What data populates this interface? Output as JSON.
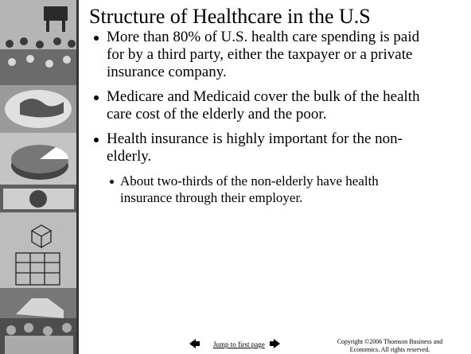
{
  "slide": {
    "title": "Structure of Healthcare in the U.S",
    "bullets": [
      {
        "level": 1,
        "text": "More than 80% of U.S. health care spending is paid for by a third party, either the taxpayer or a private insurance company."
      },
      {
        "level": 1,
        "text": "Medicare and Medicaid cover the bulk of the health care cost of the elderly and the poor."
      },
      {
        "level": 1,
        "text": "Health insurance is highly important for the non-elderly."
      },
      {
        "level": 2,
        "text": "About two-thirds of the non-elderly have health insurance through their employer."
      }
    ],
    "nav_link": "Jump to first page",
    "copyright": [
      "Copyright ©2006  Thomson Business and",
      "Economics. All rights reserved."
    ]
  }
}
